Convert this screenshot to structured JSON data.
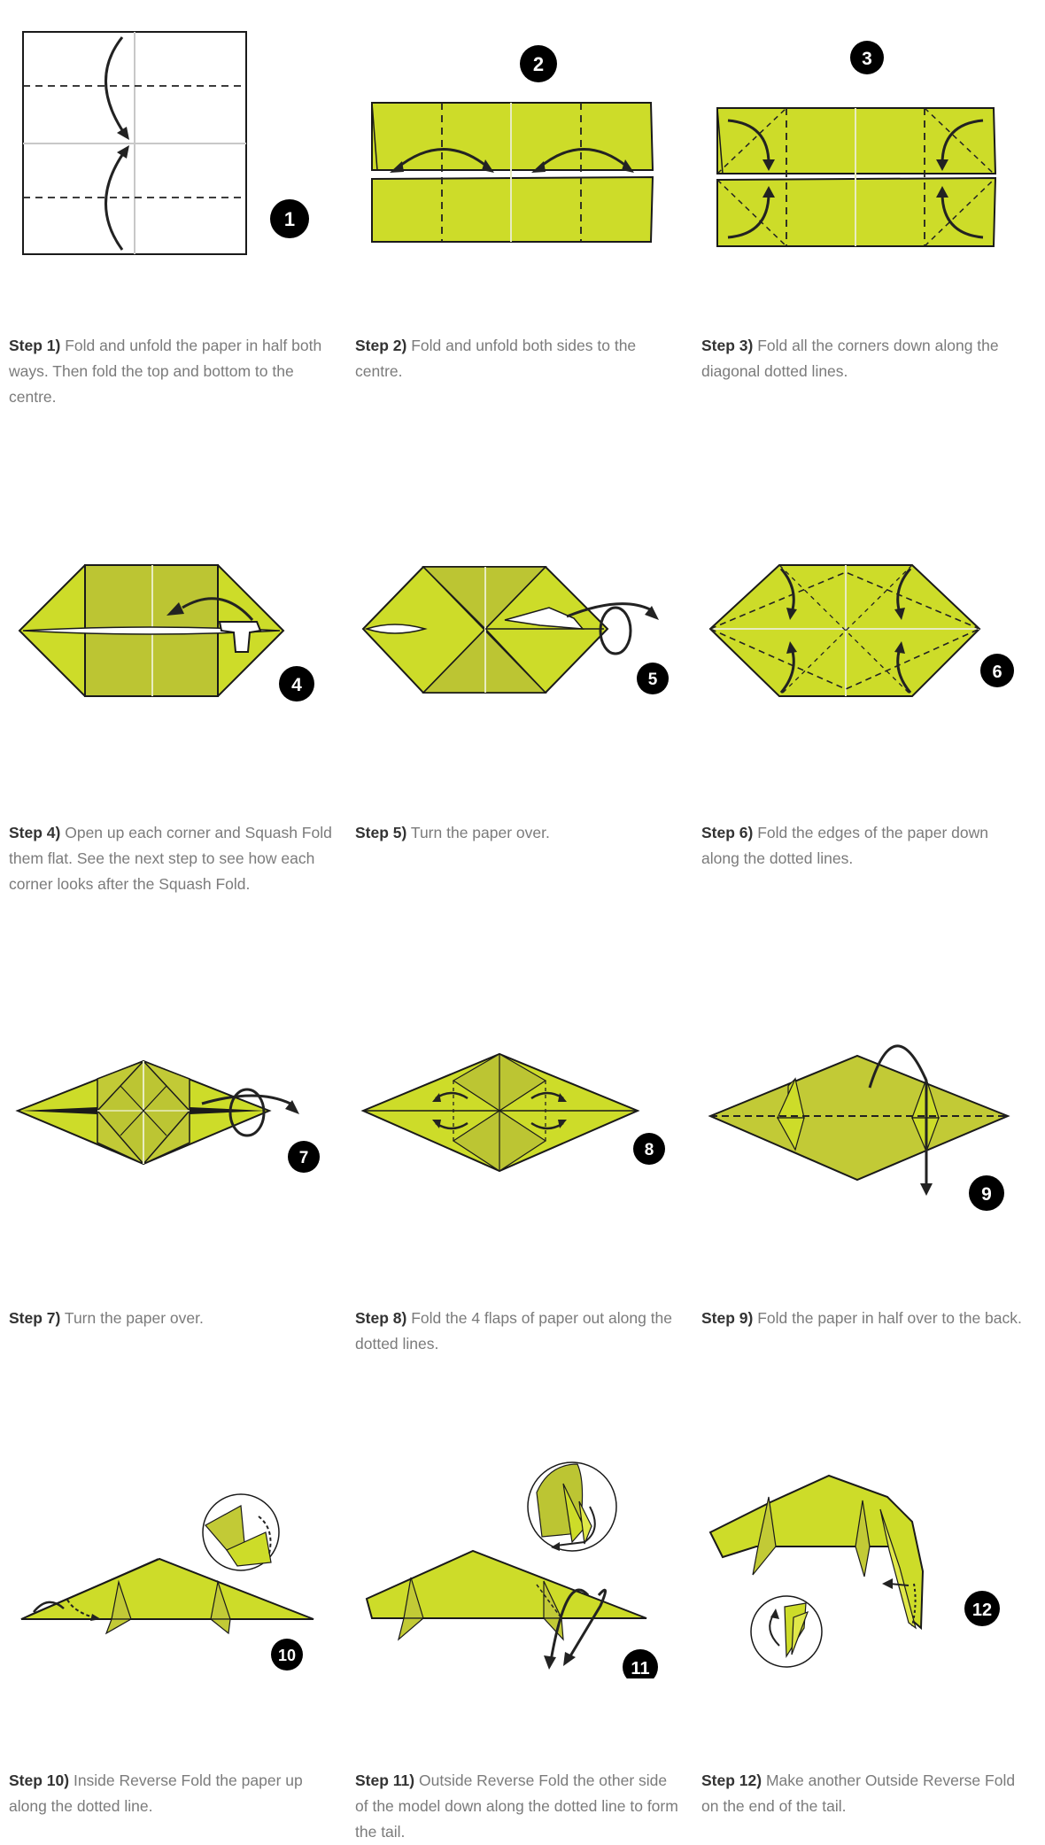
{
  "colors": {
    "paper": "#cddc29",
    "paper_dark": "#bcc533",
    "paper_mid": "#c2ca36",
    "outline": "#1a1a1a",
    "crease": "#e8ecc0",
    "caption_text": "#7b7b7b",
    "step_label": "#333333"
  },
  "steps": [
    {
      "number": "1",
      "label": "Step 1)",
      "text": "Fold and unfold the paper in half both ways. Then fold the top and bottom to the centre."
    },
    {
      "number": "2",
      "label": "Step 2)",
      "text": "Fold and unfold both sides to the centre."
    },
    {
      "number": "3",
      "label": "Step 3)",
      "text": "Fold all the corners down along the diagonal dotted lines."
    },
    {
      "number": "4",
      "label": "Step 4)",
      "text": "Open up each corner and Squash Fold them flat. See the next step to see how each corner looks after the Squash Fold."
    },
    {
      "number": "5",
      "label": "Step 5)",
      "text": "Turn the paper over."
    },
    {
      "number": "6",
      "label": "Step 6)",
      "text": "Fold the edges of the paper down along the dotted lines."
    },
    {
      "number": "7",
      "label": "Step 7)",
      "text": "Turn the paper over."
    },
    {
      "number": "8",
      "label": "Step 8)",
      "text": "Fold the 4 flaps of paper out along the dotted lines."
    },
    {
      "number": "9",
      "label": "Step 9)",
      "text": "Fold the paper in half over to the back."
    },
    {
      "number": "10",
      "label": "Step 10)",
      "text": "Inside Reverse Fold the paper up along the dotted line."
    },
    {
      "number": "11",
      "label": "Step 11)",
      "text": "Outside Reverse Fold the other side of the model down along the dotted line to form the tail."
    },
    {
      "number": "12",
      "label": "Step 12)",
      "text": "Make another Outside Reverse Fold on the end of the tail."
    }
  ]
}
